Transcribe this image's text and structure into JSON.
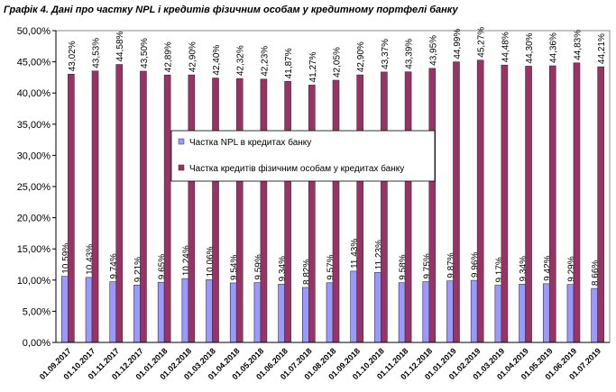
{
  "chart_data": {
    "type": "bar",
    "title": "Графік 4. Дані про частку NPL і кредитів фізичним особам у кредитному портфелі банку",
    "categories": [
      "01.09.2017",
      "01.10.2017",
      "01.11.2017",
      "01.12.2017",
      "01.01.2018",
      "01.02.2018",
      "01.03.2018",
      "01.04.2018",
      "01.05.2018",
      "01.06.2018",
      "01.07.2018",
      "01.08.2018",
      "01.09.2018",
      "01.10.2018",
      "01.11.2018",
      "01.12.2018",
      "01.01.2019",
      "01.02.2019",
      "01.03.2019",
      "01.04.2019",
      "01.05.2019",
      "01.06.2019",
      "01.07.2019"
    ],
    "series": [
      {
        "name": "Частка NPL в кредитах банку",
        "color": "#9999ff",
        "values": [
          10.59,
          10.43,
          9.74,
          9.21,
          9.65,
          10.24,
          10.06,
          9.54,
          9.59,
          9.34,
          8.82,
          9.57,
          11.43,
          11.23,
          9.58,
          9.75,
          9.87,
          9.96,
          9.17,
          9.34,
          9.42,
          9.29,
          8.66
        ],
        "value_labels": [
          "10,59%",
          "10,43%",
          "9,74%",
          "9,21%",
          "9,65%",
          "10,24%",
          "10,06%",
          "9,54%",
          "9,59%",
          "9,34%",
          "8,82%",
          "9,57%",
          "11,43%",
          "11,23%",
          "9,58%",
          "9,75%",
          "9,87%",
          "9,96%",
          "9,17%",
          "9,34%",
          "9,42%",
          "9,29%",
          "8,66%"
        ]
      },
      {
        "name": "Частка кредитів фізичним особам у кредитах банку",
        "color": "#993366",
        "values": [
          43.02,
          43.53,
          44.58,
          43.5,
          42.89,
          42.9,
          42.4,
          42.32,
          42.23,
          41.87,
          41.27,
          42.05,
          42.9,
          43.37,
          43.39,
          43.95,
          44.99,
          45.27,
          44.48,
          44.3,
          44.36,
          44.83,
          44.21
        ],
        "value_labels": [
          "43,02%",
          "43,53%",
          "44,58%",
          "43,50%",
          "42,89%",
          "42,90%",
          "42,40%",
          "42,32%",
          "42,23%",
          "41,87%",
          "41,27%",
          "42,05%",
          "42,90%",
          "43,37%",
          "43,39%",
          "43,95%",
          "44,99%",
          "45,27%",
          "44,48%",
          "44,30%",
          "44,36%",
          "44,83%",
          "44,21%"
        ]
      }
    ],
    "ylim": [
      0,
      50
    ],
    "yticks": [
      {
        "value": 0,
        "label": "0,00%"
      },
      {
        "value": 5,
        "label": "5,00%"
      },
      {
        "value": 10,
        "label": "10,00%"
      },
      {
        "value": 15,
        "label": "15,00%"
      },
      {
        "value": 20,
        "label": "20,00%"
      },
      {
        "value": 25,
        "label": "25,00%"
      },
      {
        "value": 30,
        "label": "30,00%"
      },
      {
        "value": 35,
        "label": "35,00%"
      },
      {
        "value": 40,
        "label": "40,00%"
      },
      {
        "value": 45,
        "label": "45,00%"
      },
      {
        "value": 50,
        "label": "50,00%"
      }
    ],
    "grid": false
  }
}
